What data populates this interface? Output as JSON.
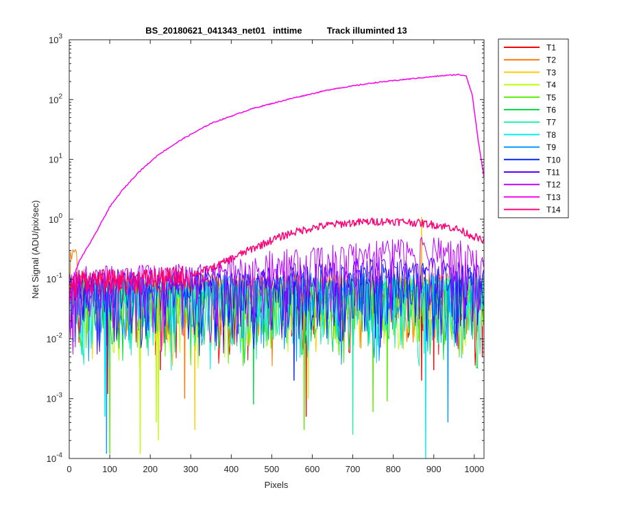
{
  "chart_data": {
    "type": "line",
    "title": "BS_20180621_041343_net01   inttime          Track illuminted 13",
    "xlabel": "Pixels",
    "ylabel": "Net Signal (ADU/pix/sec)",
    "xlim": [
      0,
      1024
    ],
    "ylim": [
      0.0001,
      1000
    ],
    "yscale": "log",
    "grid": false,
    "legend_position": "outside-top-right",
    "x_ticks": [
      0,
      100,
      200,
      300,
      400,
      500,
      600,
      700,
      800,
      900,
      1000
    ],
    "y_ticks": [
      {
        "value": 0.0001,
        "base": "10",
        "exp": "-4"
      },
      {
        "value": 0.001,
        "base": "10",
        "exp": "-3"
      },
      {
        "value": 0.01,
        "base": "10",
        "exp": "-2"
      },
      {
        "value": 0.1,
        "base": "10",
        "exp": "-1"
      },
      {
        "value": 1,
        "base": "10",
        "exp": "0"
      },
      {
        "value": 10,
        "base": "10",
        "exp": "1"
      },
      {
        "value": 100,
        "base": "10",
        "exp": "2"
      },
      {
        "value": 1000,
        "base": "10",
        "exp": "3"
      }
    ],
    "series": [
      {
        "name": "T1",
        "color": "#ff0000",
        "kind": "noise",
        "level": [
          [
            0,
            0.06
          ],
          [
            1024,
            0.06
          ]
        ],
        "dips": [
          [
            95,
            0.0012
          ],
          [
            225,
            0.003
          ],
          [
            585,
            0.0005
          ],
          [
            870,
            0.002
          ],
          [
            900,
            0.003
          ],
          [
            1020,
            0.005
          ]
        ]
      },
      {
        "name": "T2",
        "color": "#ff7700",
        "kind": "noise",
        "level": [
          [
            0,
            0.2
          ],
          [
            25,
            0.18
          ],
          [
            40,
            0.07
          ],
          [
            1024,
            0.07
          ]
        ],
        "dips": [
          [
            285,
            0.001
          ]
        ]
      },
      {
        "name": "T3",
        "color": "#ffcc00",
        "kind": "noise",
        "level": [
          [
            0,
            0.06
          ],
          [
            1024,
            0.07
          ]
        ],
        "dips": [
          [
            310,
            0.0003
          ]
        ],
        "spikes": [
          [
            870,
            1.1
          ]
        ]
      },
      {
        "name": "T4",
        "color": "#bbff00",
        "kind": "noise",
        "level": [
          [
            0,
            0.05
          ],
          [
            1024,
            0.06
          ]
        ],
        "dips": [
          [
            175,
            0.00012
          ],
          [
            215,
            0.0004
          ],
          [
            220,
            0.0002
          ],
          [
            590,
            0.001
          ]
        ]
      },
      {
        "name": "T5",
        "color": "#55ee00",
        "kind": "noise",
        "level": [
          [
            0,
            0.05
          ],
          [
            1024,
            0.06
          ]
        ],
        "dips": [
          [
            100,
            0.00012
          ],
          [
            580,
            0.0003
          ],
          [
            750,
            0.0006
          ],
          [
            785,
            0.0009
          ]
        ]
      },
      {
        "name": "T6",
        "color": "#00dd44",
        "kind": "noise",
        "level": [
          [
            0,
            0.05
          ],
          [
            1024,
            0.06
          ]
        ],
        "dips": [
          [
            455,
            0.0008
          ]
        ]
      },
      {
        "name": "T7",
        "color": "#22eeaa",
        "kind": "noise",
        "level": [
          [
            0,
            0.05
          ],
          [
            1024,
            0.06
          ]
        ],
        "dips": [
          [
            700,
            0.00025
          ]
        ]
      },
      {
        "name": "T8",
        "color": "#00eeee",
        "kind": "noise",
        "level": [
          [
            0,
            0.05
          ],
          [
            1024,
            0.07
          ]
        ],
        "dips": [
          [
            88,
            0.0005
          ],
          [
            880,
            0.0001
          ]
        ]
      },
      {
        "name": "T9",
        "color": "#0099ff",
        "kind": "noise",
        "level": [
          [
            0,
            0.06
          ],
          [
            1024,
            0.08
          ]
        ],
        "dips": [
          [
            92,
            0.00012
          ],
          [
            935,
            0.0004
          ]
        ]
      },
      {
        "name": "T10",
        "color": "#0022ff",
        "kind": "noise",
        "level": [
          [
            0,
            0.07
          ],
          [
            400,
            0.08
          ],
          [
            800,
            0.11
          ],
          [
            1024,
            0.09
          ]
        ],
        "dips": [
          [
            555,
            0.002
          ]
        ]
      },
      {
        "name": "T11",
        "color": "#5500ff",
        "kind": "noise",
        "level": [
          [
            0,
            0.08
          ],
          [
            400,
            0.09
          ],
          [
            800,
            0.14
          ],
          [
            1024,
            0.11
          ]
        ],
        "dips": []
      },
      {
        "name": "T12",
        "color": "#bb00ff",
        "kind": "noise",
        "level": [
          [
            0,
            0.09
          ],
          [
            300,
            0.1
          ],
          [
            500,
            0.17
          ],
          [
            700,
            0.22
          ],
          [
            850,
            0.28
          ],
          [
            950,
            0.27
          ],
          [
            1024,
            0.18
          ]
        ],
        "dips": []
      },
      {
        "name": "T13",
        "color": "#ff00ee",
        "kind": "smooth",
        "points": [
          [
            0,
            0.04
          ],
          [
            8,
            0.08
          ],
          [
            15,
            0.13
          ],
          [
            25,
            0.2
          ],
          [
            40,
            0.3
          ],
          [
            60,
            0.5
          ],
          [
            80,
            0.9
          ],
          [
            100,
            1.6
          ],
          [
            130,
            3
          ],
          [
            170,
            6
          ],
          [
            220,
            12
          ],
          [
            280,
            22
          ],
          [
            350,
            40
          ],
          [
            450,
            70
          ],
          [
            550,
            105
          ],
          [
            650,
            150
          ],
          [
            750,
            190
          ],
          [
            850,
            225
          ],
          [
            920,
            250
          ],
          [
            960,
            262
          ],
          [
            980,
            250
          ],
          [
            995,
            120
          ],
          [
            1010,
            20
          ],
          [
            1024,
            5
          ]
        ]
      },
      {
        "name": "T14",
        "color": "#ff0077",
        "kind": "trend",
        "points": [
          [
            0,
            0.05
          ],
          [
            10,
            0.08
          ],
          [
            30,
            0.1
          ],
          [
            150,
            0.1
          ],
          [
            250,
            0.11
          ],
          [
            300,
            0.12
          ],
          [
            350,
            0.15
          ],
          [
            400,
            0.22
          ],
          [
            450,
            0.32
          ],
          [
            500,
            0.45
          ],
          [
            550,
            0.6
          ],
          [
            600,
            0.72
          ],
          [
            650,
            0.82
          ],
          [
            700,
            0.88
          ],
          [
            750,
            0.92
          ],
          [
            800,
            0.93
          ],
          [
            850,
            0.89
          ],
          [
            900,
            0.82
          ],
          [
            950,
            0.72
          ],
          [
            1000,
            0.52
          ],
          [
            1024,
            0.42
          ]
        ]
      }
    ]
  }
}
